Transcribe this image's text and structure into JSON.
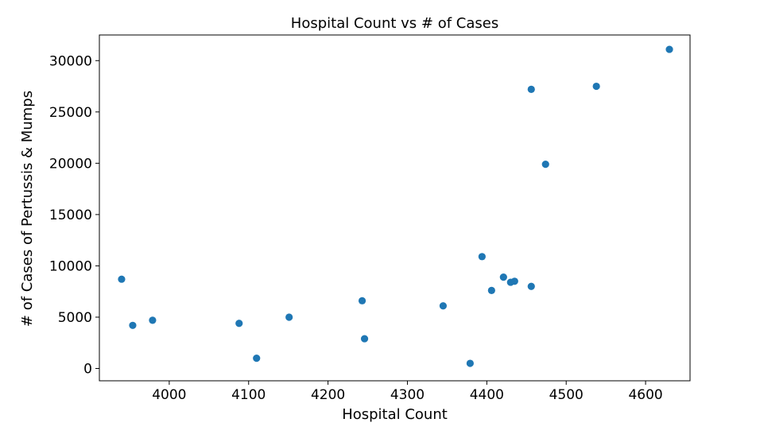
{
  "chart_data": {
    "type": "scatter",
    "title": "Hospital Count vs # of Cases",
    "xlabel": "Hospital Count",
    "ylabel": "# of Cases of Pertussis & Mumps",
    "xlim": [
      3912,
      4656
    ],
    "ylim": [
      -1200,
      32500
    ],
    "xticks": [
      4000,
      4100,
      4200,
      4300,
      4400,
      4500,
      4600
    ],
    "yticks": [
      0,
      5000,
      10000,
      15000,
      20000,
      25000,
      30000
    ],
    "grid": false,
    "legend": "none",
    "marker_color": "#1f77b4",
    "points": [
      {
        "x": 3940,
        "y": 8700
      },
      {
        "x": 3954,
        "y": 4200
      },
      {
        "x": 3979,
        "y": 4700
      },
      {
        "x": 4088,
        "y": 4400
      },
      {
        "x": 4110,
        "y": 1000
      },
      {
        "x": 4151,
        "y": 5000
      },
      {
        "x": 4243,
        "y": 6600
      },
      {
        "x": 4246,
        "y": 2900
      },
      {
        "x": 4345,
        "y": 6100
      },
      {
        "x": 4379,
        "y": 500
      },
      {
        "x": 4394,
        "y": 10900
      },
      {
        "x": 4406,
        "y": 7600
      },
      {
        "x": 4421,
        "y": 8900
      },
      {
        "x": 4430,
        "y": 8400
      },
      {
        "x": 4435,
        "y": 8500
      },
      {
        "x": 4456,
        "y": 8000
      },
      {
        "x": 4456,
        "y": 27200
      },
      {
        "x": 4474,
        "y": 19900
      },
      {
        "x": 4538,
        "y": 27500
      },
      {
        "x": 4630,
        "y": 31100
      }
    ]
  }
}
